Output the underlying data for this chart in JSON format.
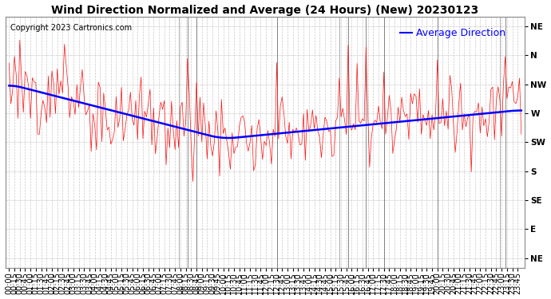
{
  "title": "Wind Direction Normalized and Average (24 Hours) (New) 20230123",
  "copyright": "Copyright 2023 Cartronics.com",
  "legend_label": "Average Direction",
  "background_color": "#ffffff",
  "plot_bg_color": "#ffffff",
  "grid_color": "#bbbbbb",
  "wind_color": "#ff0000",
  "avg_color": "#0000ff",
  "spike_color": "#555555",
  "ytick_labels": [
    "NE",
    "N",
    "NW",
    "W",
    "SW",
    "S",
    "SE",
    "E",
    "NE"
  ],
  "ytick_values": [
    0,
    45,
    90,
    135,
    180,
    225,
    270,
    315,
    360
  ],
  "ylim": [
    -15,
    375
  ],
  "num_points": 288,
  "title_fontsize": 10,
  "copyright_fontsize": 7,
  "legend_fontsize": 9,
  "tick_fontsize": 7.5
}
